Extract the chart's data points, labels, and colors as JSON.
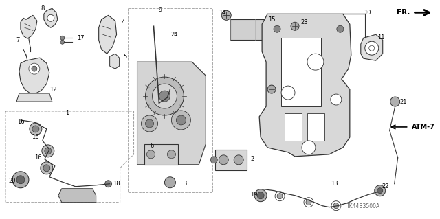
{
  "bg_color": "#ffffff",
  "fig_width": 6.4,
  "fig_height": 3.19,
  "dpi": 100,
  "watermark": "TK44B3500A",
  "atm_label": "ATM-7",
  "line_color": "#333333",
  "text_color": "#000000",
  "label_fontsize": 6.0,
  "atm_fontsize": 7.0,
  "gray_fill": "#c8c8c8",
  "light_gray": "#e0e0e0",
  "dark_gray": "#888888"
}
